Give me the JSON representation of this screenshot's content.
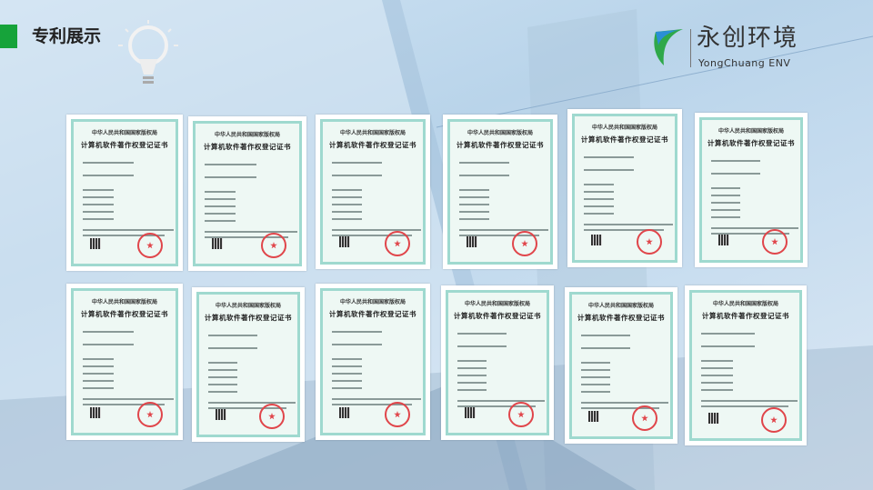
{
  "header": {
    "title": "专利展示",
    "accent_color": "#16a33a"
  },
  "logo": {
    "name_cn": "永创环境",
    "name_en": "YongChuang ENV",
    "brand_color": "#2fa84a"
  },
  "certificates": {
    "issuer": "中华人民共和国国家版权局",
    "title": "计算机软件著作权登记证书",
    "count": 12
  }
}
